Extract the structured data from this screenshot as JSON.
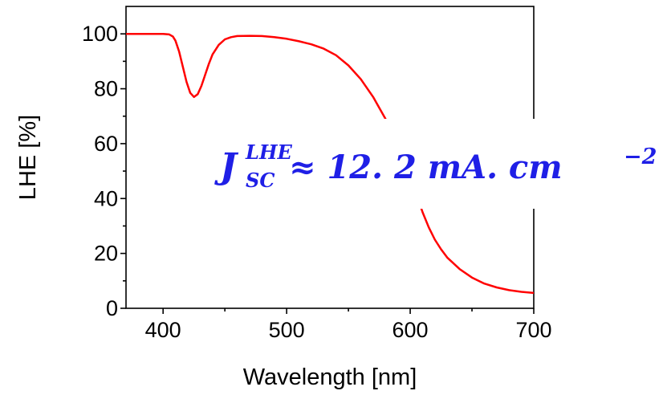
{
  "chart_data": {
    "type": "line",
    "title": "",
    "xlabel": "Wavelength [nm]",
    "ylabel": "LHE [%]",
    "xlim": [
      370,
      700
    ],
    "ylim": [
      0,
      110
    ],
    "xticks": [
      400,
      500,
      600,
      700
    ],
    "yticks": [
      0,
      20,
      40,
      60,
      80,
      100
    ],
    "xtick_labels": [
      "400",
      "500",
      "600",
      "700"
    ],
    "ytick_labels": [
      "0",
      "20",
      "40",
      "60",
      "80",
      "100"
    ],
    "grid": false,
    "legend": "none",
    "series": [
      {
        "color": "#ff0000",
        "x": [
          370,
          380,
          390,
          400,
          405,
          408,
          410,
          413,
          416,
          419,
          422,
          425,
          428,
          431,
          434,
          437,
          440,
          445,
          450,
          455,
          460,
          470,
          480,
          490,
          500,
          510,
          520,
          530,
          540,
          550,
          560,
          570,
          580,
          585,
          590,
          595,
          600,
          605,
          610,
          615,
          620,
          625,
          630,
          640,
          650,
          660,
          670,
          680,
          690,
          700
        ],
        "y": [
          100,
          100,
          100,
          100,
          99.8,
          99.0,
          97.5,
          93.5,
          88,
          82.5,
          78.5,
          77,
          78,
          81,
          85,
          89,
          92.5,
          96,
          98,
          98.8,
          99.2,
          99.3,
          99.2,
          98.8,
          98.2,
          97.3,
          96.2,
          94.6,
          92.2,
          88.5,
          83.5,
          77,
          69,
          64.5,
          59.5,
          54,
          48,
          41.5,
          35,
          29.5,
          25,
          21.5,
          18.5,
          14.3,
          11.2,
          9.0,
          7.6,
          6.6,
          6.0,
          5.6
        ]
      }
    ],
    "annotation": {
      "base": "J",
      "superscript": "LHE",
      "subscript": "SC",
      "body": " ≈ 12. 2 mA. cm",
      "exponent": "−2",
      "color": "#1f1fe6"
    }
  }
}
